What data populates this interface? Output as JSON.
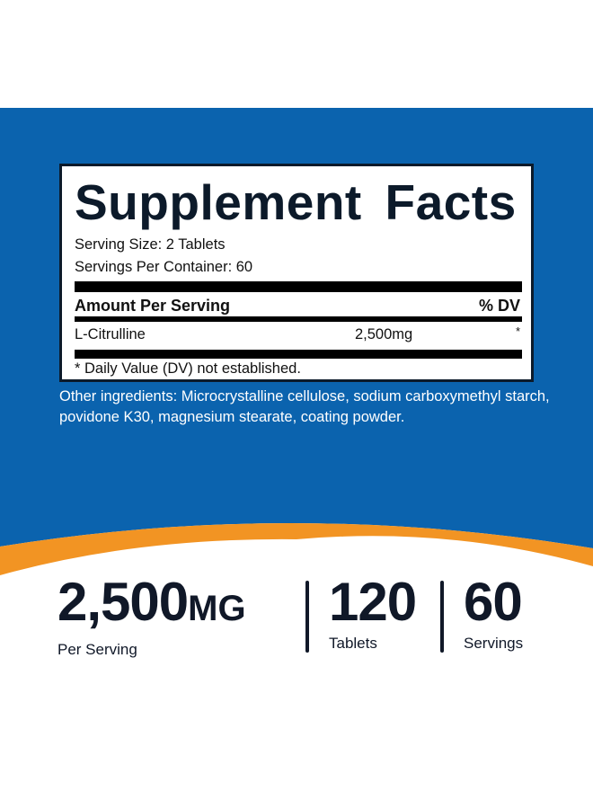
{
  "colors": {
    "background_band": "#0b63ae",
    "accent_stripe": "#f29423",
    "text_dark": "#101828"
  },
  "facts": {
    "title": "Supplement Facts",
    "serving_size": "Serving Size: 2 Tablets",
    "servings_per_container": "Servings Per Container: 60",
    "amount_header": "Amount Per Serving",
    "dv_header": "% DV",
    "ingredients": [
      {
        "name": "L-Citrulline",
        "amount": "2,500mg",
        "dv": "*"
      }
    ],
    "footnote": "* Daily Value (DV) not established."
  },
  "other_ingredients": "Other ingredients: Microcrystalline cellulose, sodium carboxymethyl starch, povidone K30, magnesium stearate, coating powder.",
  "stats": [
    {
      "value": "2,500",
      "unit": "MG",
      "label": "Per Serving"
    },
    {
      "value": "120",
      "unit": "",
      "label": "Tablets"
    },
    {
      "value": "60",
      "unit": "",
      "label": "Servings"
    }
  ]
}
